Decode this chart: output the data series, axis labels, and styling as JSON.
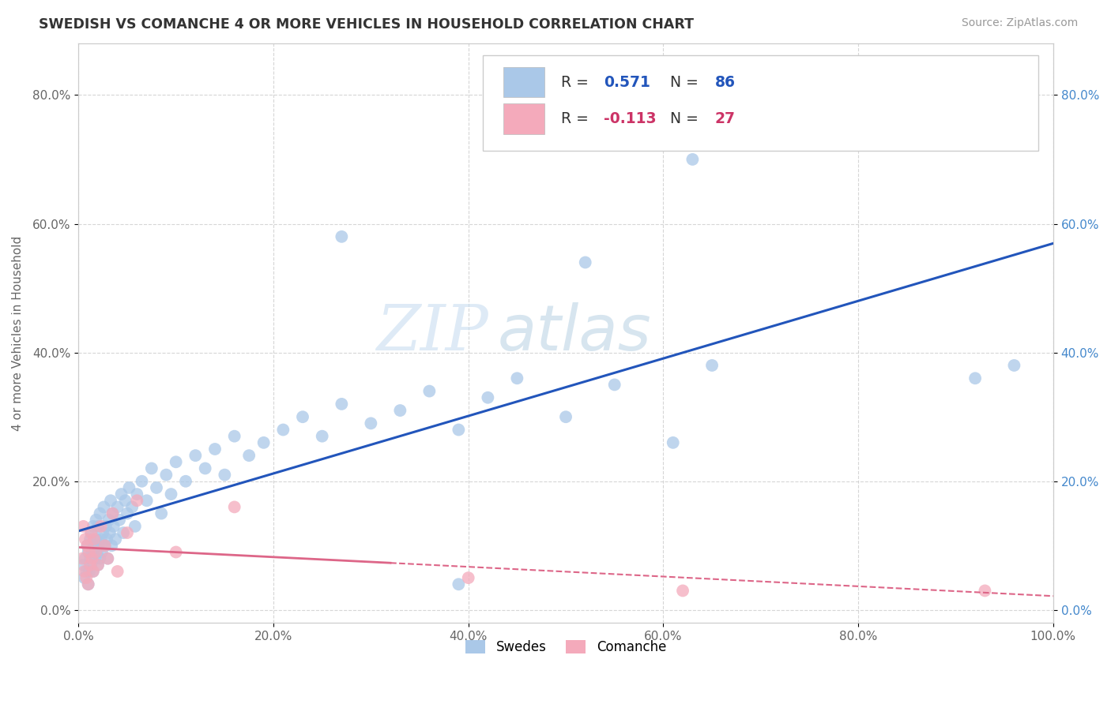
{
  "title": "SWEDISH VS COMANCHE 4 OR MORE VEHICLES IN HOUSEHOLD CORRELATION CHART",
  "source": "Source: ZipAtlas.com",
  "xlabel": "",
  "ylabel": "4 or more Vehicles in Household",
  "xlim": [
    0,
    1.0
  ],
  "ylim": [
    -0.02,
    0.88
  ],
  "xticks": [
    0.0,
    0.2,
    0.4,
    0.6,
    0.8,
    1.0
  ],
  "xticklabels": [
    "0.0%",
    "20.0%",
    "40.0%",
    "60.0%",
    "80.0%",
    "100.0%"
  ],
  "yticks": [
    0.0,
    0.2,
    0.4,
    0.6,
    0.8
  ],
  "yticklabels": [
    "0.0%",
    "20.0%",
    "40.0%",
    "60.0%",
    "80.0%"
  ],
  "blue_R": "0.571",
  "blue_N": "86",
  "pink_R": "-0.113",
  "pink_N": "27",
  "blue_color": "#aac8e8",
  "pink_color": "#f4aabb",
  "blue_line_color": "#2255bb",
  "pink_line_color": "#dd6688",
  "legend_label_blue": "Swedes",
  "legend_label_pink": "Comanche",
  "watermark_zip": "ZIP",
  "watermark_atlas": "atlas",
  "background_color": "#ffffff",
  "grid_color": "#cccccc",
  "blue_scatter_x": [
    0.005,
    0.006,
    0.007,
    0.008,
    0.009,
    0.01,
    0.01,
    0.011,
    0.012,
    0.012,
    0.013,
    0.013,
    0.014,
    0.015,
    0.015,
    0.016,
    0.017,
    0.018,
    0.018,
    0.019,
    0.02,
    0.02,
    0.021,
    0.022,
    0.022,
    0.023,
    0.024,
    0.025,
    0.026,
    0.027,
    0.028,
    0.029,
    0.03,
    0.031,
    0.032,
    0.033,
    0.034,
    0.035,
    0.036,
    0.038,
    0.04,
    0.042,
    0.044,
    0.046,
    0.048,
    0.05,
    0.052,
    0.055,
    0.058,
    0.06,
    0.065,
    0.07,
    0.075,
    0.08,
    0.085,
    0.09,
    0.095,
    0.1,
    0.11,
    0.12,
    0.13,
    0.14,
    0.15,
    0.16,
    0.175,
    0.19,
    0.21,
    0.23,
    0.25,
    0.27,
    0.3,
    0.33,
    0.36,
    0.39,
    0.42,
    0.45,
    0.5,
    0.55,
    0.61,
    0.65,
    0.27,
    0.52,
    0.63,
    0.92,
    0.39,
    0.96
  ],
  "blue_scatter_y": [
    0.07,
    0.05,
    0.08,
    0.06,
    0.1,
    0.04,
    0.09,
    0.06,
    0.11,
    0.08,
    0.07,
    0.12,
    0.09,
    0.06,
    0.13,
    0.1,
    0.08,
    0.11,
    0.14,
    0.09,
    0.07,
    0.13,
    0.1,
    0.08,
    0.15,
    0.11,
    0.09,
    0.12,
    0.16,
    0.1,
    0.13,
    0.11,
    0.08,
    0.14,
    0.12,
    0.17,
    0.1,
    0.15,
    0.13,
    0.11,
    0.16,
    0.14,
    0.18,
    0.12,
    0.17,
    0.15,
    0.19,
    0.16,
    0.13,
    0.18,
    0.2,
    0.17,
    0.22,
    0.19,
    0.15,
    0.21,
    0.18,
    0.23,
    0.2,
    0.24,
    0.22,
    0.25,
    0.21,
    0.27,
    0.24,
    0.26,
    0.28,
    0.3,
    0.27,
    0.32,
    0.29,
    0.31,
    0.34,
    0.28,
    0.33,
    0.36,
    0.3,
    0.35,
    0.26,
    0.38,
    0.58,
    0.54,
    0.7,
    0.36,
    0.04,
    0.38
  ],
  "pink_scatter_x": [
    0.004,
    0.005,
    0.006,
    0.007,
    0.008,
    0.009,
    0.01,
    0.011,
    0.012,
    0.013,
    0.014,
    0.015,
    0.016,
    0.018,
    0.02,
    0.023,
    0.027,
    0.03,
    0.035,
    0.04,
    0.05,
    0.06,
    0.1,
    0.16,
    0.4,
    0.62,
    0.93
  ],
  "pink_scatter_y": [
    0.08,
    0.13,
    0.06,
    0.11,
    0.05,
    0.1,
    0.04,
    0.09,
    0.07,
    0.12,
    0.08,
    0.06,
    0.11,
    0.09,
    0.07,
    0.13,
    0.1,
    0.08,
    0.15,
    0.06,
    0.12,
    0.17,
    0.09,
    0.16,
    0.05,
    0.03,
    0.03
  ]
}
